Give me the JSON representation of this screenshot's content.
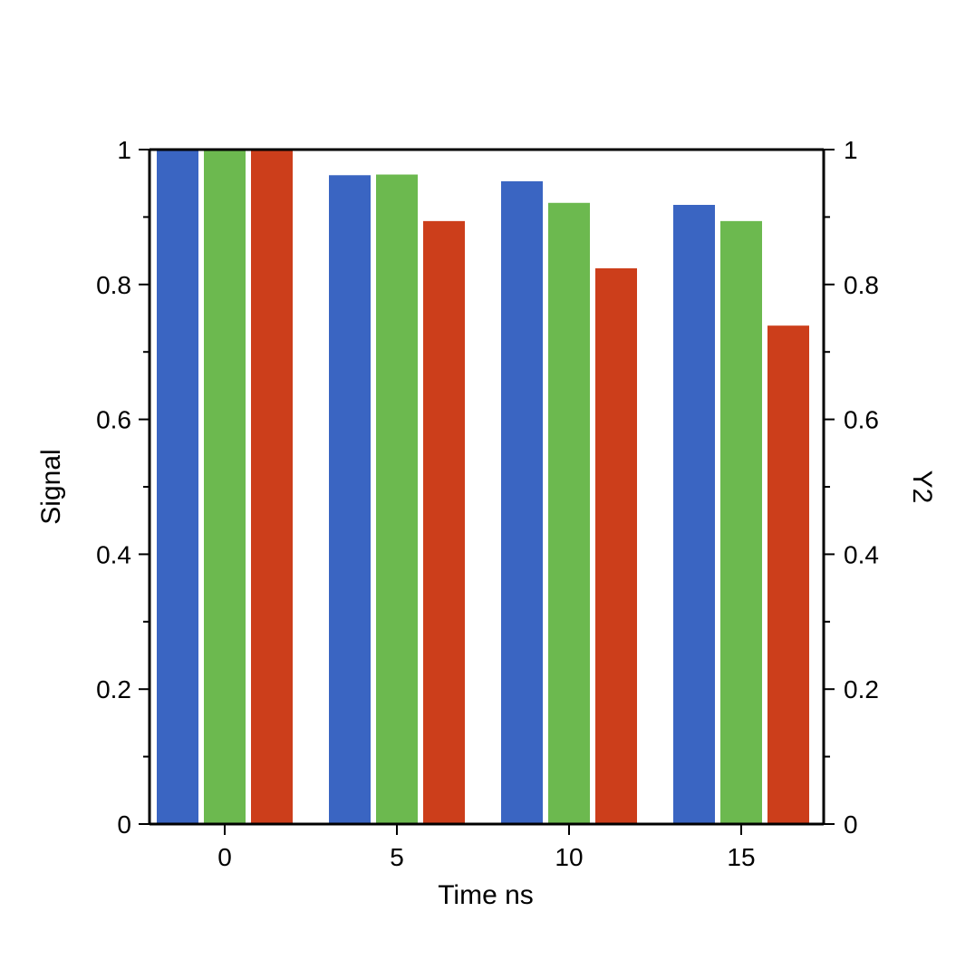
{
  "chart_data": {
    "type": "bar",
    "categories": [
      "0",
      "5",
      "10",
      "15"
    ],
    "series": [
      {
        "color": "#3a65c2",
        "values": [
          1.0,
          0.962,
          0.953,
          0.918
        ]
      },
      {
        "color": "#6cb94f",
        "values": [
          1.0,
          0.963,
          0.921,
          0.894
        ]
      },
      {
        "color": "#cc3e1b",
        "values": [
          1.0,
          0.894,
          0.824,
          0.739
        ]
      }
    ],
    "xlabel": "Time ns",
    "ylabel": "Signal",
    "y2label": "Y2",
    "ylim": [
      0,
      1
    ],
    "y2lim": [
      0,
      1
    ],
    "yticks": [
      "0",
      "0.2",
      "0.4",
      "0.6",
      "0.8",
      "1"
    ],
    "y2ticks": [
      "0",
      "0.2",
      "0.4",
      "0.6",
      "0.8",
      "1"
    ],
    "grid": false,
    "legend": false
  }
}
